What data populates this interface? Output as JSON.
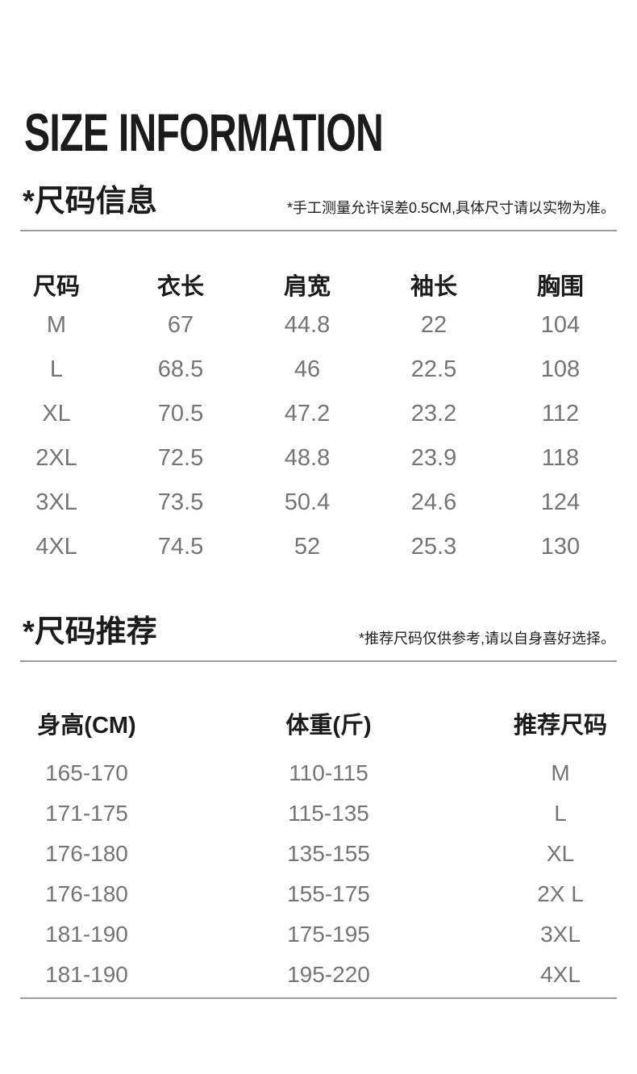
{
  "page_title": "SIZE INFORMATION",
  "colors": {
    "background": "#ffffff",
    "heading_text": "#1b1b1b",
    "data_text": "#757575",
    "divider": "#9a9a9a"
  },
  "size_info": {
    "heading": "*尺码信息",
    "note": "*手工测量允许误差0.5CM,具体尺寸请以实物为准。",
    "table": {
      "columns": [
        "尺码",
        "衣长",
        "肩宽",
        "袖长",
        "胸围"
      ],
      "rows": [
        [
          "M",
          "67",
          "44.8",
          "22",
          "104"
        ],
        [
          "L",
          "68.5",
          "46",
          "22.5",
          "108"
        ],
        [
          "XL",
          "70.5",
          "47.2",
          "23.2",
          "112"
        ],
        [
          "2XL",
          "72.5",
          "48.8",
          "23.9",
          "118"
        ],
        [
          "3XL",
          "73.5",
          "50.4",
          "24.6",
          "124"
        ],
        [
          "4XL",
          "74.5",
          "52",
          "25.3",
          "130"
        ]
      ]
    }
  },
  "size_recommend": {
    "heading": "*尺码推荐",
    "note": "*推荐尺码仅供参考,请以自身喜好选择。",
    "table": {
      "columns": [
        "身高(CM)",
        "体重(斤)",
        "推荐尺码"
      ],
      "rows": [
        [
          "165-170",
          "110-115",
          "M"
        ],
        [
          "171-175",
          "115-135",
          "L"
        ],
        [
          "176-180",
          "135-155",
          "XL"
        ],
        [
          "176-180",
          "155-175",
          "2X L"
        ],
        [
          "181-190",
          "175-195",
          "3XL"
        ],
        [
          "181-190",
          "195-220",
          "4XL"
        ]
      ]
    }
  }
}
